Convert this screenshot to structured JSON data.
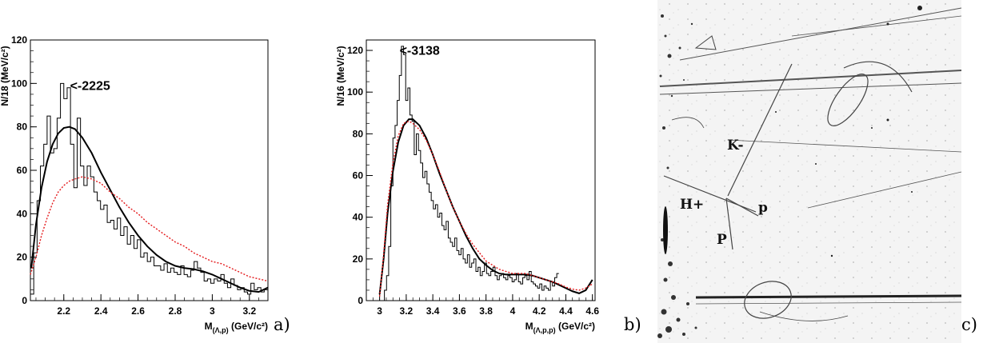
{
  "chart_data": [
    {
      "type": "line",
      "panel_label": "a)",
      "xlabel": "M",
      "xlabel_sub": "(Λ,p)",
      "xlabel_unit": "(GeV/c²)",
      "ylabel": "N/18 (MeV/c²)",
      "xlim": [
        2.02,
        3.3
      ],
      "ylim": [
        0,
        120
      ],
      "x_ticks": [
        2.2,
        2.4,
        2.6,
        2.8,
        3,
        3.2
      ],
      "y_ticks": [
        0,
        20,
        40,
        60,
        80,
        100,
        120
      ],
      "x_tick_labels": [
        "2.2",
        "2.4",
        "2.6",
        "2.8",
        "3",
        "3.2"
      ],
      "y_tick_labels": [
        "0",
        "20",
        "40",
        "60",
        "80",
        "100",
        "120"
      ],
      "annotation": {
        "text": "<-2225",
        "x": 2.225,
        "y": 100
      },
      "bin_width": 0.018,
      "series": [
        {
          "style": "histogram",
          "color": "#000000",
          "x_start": 2.02,
          "values": [
            3,
            22,
            46,
            62,
            72,
            85,
            68,
            70,
            84,
            100,
            93,
            98,
            72,
            52,
            84,
            62,
            53,
            62,
            57,
            50,
            46,
            42,
            44,
            36,
            37,
            33,
            38,
            30,
            34,
            26,
            30,
            24,
            28,
            20,
            22,
            18,
            20,
            16,
            16,
            14,
            17,
            13,
            15,
            13,
            12,
            16,
            12,
            11,
            14,
            18,
            15,
            13,
            9,
            10,
            8,
            10,
            9,
            12,
            8,
            6,
            10,
            7,
            5,
            6,
            4,
            3,
            8,
            5,
            6,
            4,
            5
          ]
        },
        {
          "style": "curve",
          "color": "#000000",
          "x": [
            2.025,
            2.05,
            2.08,
            2.11,
            2.14,
            2.17,
            2.2,
            2.23,
            2.26,
            2.3,
            2.35,
            2.4,
            2.45,
            2.5,
            2.55,
            2.6,
            2.65,
            2.7,
            2.75,
            2.8,
            2.85,
            2.9,
            2.95,
            3.0,
            3.05,
            3.1,
            3.15,
            3.2,
            3.25,
            3.3
          ],
          "y": [
            15,
            35,
            52,
            64,
            72,
            77,
            79.5,
            80,
            79,
            75,
            68,
            59,
            51,
            43,
            36,
            30,
            25,
            21,
            18,
            16,
            15,
            14.5,
            13.5,
            12,
            10,
            8,
            6,
            4.5,
            4,
            6
          ]
        },
        {
          "style": "dotted",
          "color": "#e41a1c",
          "x": [
            2.02,
            2.05,
            2.08,
            2.11,
            2.14,
            2.17,
            2.2,
            2.23,
            2.26,
            2.3,
            2.35,
            2.4,
            2.45,
            2.5,
            2.55,
            2.6,
            2.65,
            2.7,
            2.75,
            2.8,
            2.85,
            2.9,
            2.95,
            3.0,
            3.05,
            3.1,
            3.15,
            3.2,
            3.25,
            3.3
          ],
          "y": [
            12,
            20,
            30,
            38,
            45,
            50,
            53,
            55,
            56,
            57,
            56,
            54,
            50,
            47,
            43,
            40,
            36,
            33,
            30,
            27,
            25,
            22,
            20,
            18,
            17,
            15,
            13,
            11,
            10,
            9
          ]
        }
      ]
    },
    {
      "type": "line",
      "panel_label": "b)",
      "xlabel": "M",
      "xlabel_sub": "(Λ,p,p)",
      "xlabel_unit": "(GeV/c²)",
      "ylabel": "N/16 (MeV/c²)",
      "xlim": [
        2.9,
        4.62
      ],
      "ylim": [
        0,
        125
      ],
      "x_ticks": [
        3,
        3.2,
        3.4,
        3.6,
        3.8,
        4,
        4.2,
        4.4,
        4.6
      ],
      "y_ticks": [
        0,
        20,
        40,
        60,
        80,
        100,
        120
      ],
      "x_tick_labels": [
        "3",
        "3.2",
        "3.4",
        "3.6",
        "3.8",
        "4",
        "4.2",
        "4.4",
        "4.6"
      ],
      "y_tick_labels": [
        "0",
        "20",
        "40",
        "60",
        "80",
        "100",
        "120"
      ],
      "annotation": {
        "text": "<-3138",
        "x": 3.138,
        "y": 121
      },
      "bin_width": 0.016,
      "series": [
        {
          "style": "histogram",
          "color": "#000000",
          "x_start": 3.02,
          "values": [
            0,
            5,
            12,
            26,
            55,
            78,
            84,
            96,
            108,
            122,
            118,
            96,
            102,
            89,
            86,
            70,
            80,
            72,
            66,
            59,
            62,
            56,
            52,
            48,
            44,
            46,
            40,
            42,
            36,
            34,
            38,
            30,
            28,
            26,
            30,
            24,
            22,
            25,
            20,
            18,
            22,
            16,
            18,
            20,
            14,
            16,
            12,
            14,
            18,
            13,
            12,
            14,
            16,
            12,
            10,
            12,
            13,
            11,
            10,
            12,
            11,
            9,
            10,
            13,
            9,
            8,
            11,
            12,
            10,
            14,
            9,
            8,
            7,
            6,
            8,
            5,
            7,
            6,
            5,
            9,
            7,
            11,
            13
          ]
        },
        {
          "style": "curve",
          "color": "#000000",
          "x": [
            3.0,
            3.03,
            3.06,
            3.1,
            3.14,
            3.18,
            3.22,
            3.25,
            3.3,
            3.35,
            3.4,
            3.45,
            3.5,
            3.55,
            3.6,
            3.65,
            3.7,
            3.75,
            3.8,
            3.85,
            3.9,
            3.95,
            4.0,
            4.05,
            4.1,
            4.15,
            4.2,
            4.25,
            4.3,
            4.35,
            4.4,
            4.45,
            4.5,
            4.55,
            4.6
          ],
          "y": [
            3,
            20,
            42,
            62,
            76,
            84,
            87,
            87,
            84,
            78,
            70,
            61,
            53,
            45,
            38,
            31,
            25,
            20,
            17,
            14.5,
            13,
            12.5,
            12.5,
            12.5,
            12.5,
            12,
            11,
            10,
            9,
            7.5,
            6,
            4.5,
            3.5,
            5,
            10
          ]
        },
        {
          "style": "dotted",
          "color": "#e41a1c",
          "x": [
            3.0,
            3.03,
            3.06,
            3.1,
            3.14,
            3.18,
            3.22,
            3.25,
            3.3,
            3.35,
            3.4,
            3.45,
            3.5,
            3.55,
            3.6,
            3.65,
            3.7,
            3.75,
            3.8,
            3.85,
            3.9,
            3.95,
            4.0,
            4.05,
            4.1,
            4.15,
            4.2,
            4.25,
            4.3,
            4.35,
            4.4,
            4.45,
            4.5,
            4.55,
            4.6
          ],
          "y": [
            2,
            22,
            46,
            66,
            79,
            85,
            86,
            85,
            82,
            77,
            70,
            62,
            53,
            45,
            38,
            32,
            27,
            23,
            19,
            17,
            15,
            14,
            13,
            13,
            13,
            12,
            11,
            10,
            9,
            8,
            6.5,
            5.5,
            5,
            6,
            8
          ]
        }
      ]
    }
  ],
  "photo": {
    "panel_label": "c)",
    "track_labels": [
      "K-",
      "H+",
      "p",
      "P"
    ]
  }
}
